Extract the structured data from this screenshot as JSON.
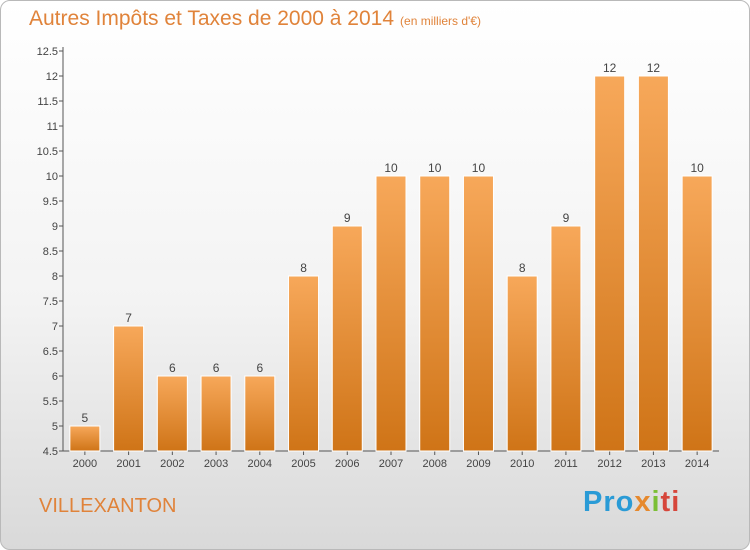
{
  "header": {
    "title": "Autres Impôts et Taxes de 2000 à 2014",
    "subtitle": "(en milliers d'€)"
  },
  "footer": {
    "town": "VILLEXANTON",
    "logo": "Proxiti"
  },
  "colors": {
    "bar_top": "#f7a85a",
    "bar_bottom": "#cf7417",
    "title": "#e0833a"
  },
  "chart_data": {
    "type": "bar",
    "categories": [
      "2000",
      "2001",
      "2002",
      "2003",
      "2004",
      "2005",
      "2006",
      "2007",
      "2008",
      "2009",
      "2010",
      "2011",
      "2012",
      "2013",
      "2014"
    ],
    "values": [
      5,
      7,
      6,
      6,
      6,
      8,
      9,
      10,
      10,
      10,
      8,
      9,
      12,
      12,
      10
    ],
    "title": "Autres Impôts et Taxes de 2000 à 2014",
    "xlabel": "",
    "ylabel": "",
    "ylim": [
      4.5,
      12.5
    ],
    "yticks": [
      "4.5",
      "5",
      "5.5",
      "6",
      "6.5",
      "7",
      "7.5",
      "8",
      "8.5",
      "9",
      "9.5",
      "10",
      "10.5",
      "11",
      "11.5",
      "12",
      "12.5"
    ],
    "grid": false,
    "data_labels": true
  }
}
